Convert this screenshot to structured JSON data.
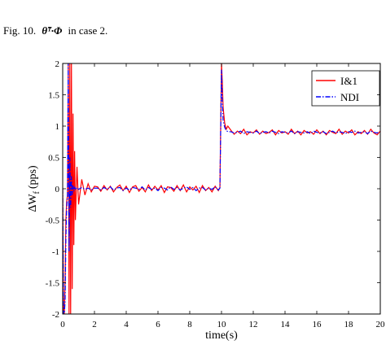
{
  "caption": {
    "prefix": "Fig. 10.",
    "math": "θ̃ᵀ·Φ",
    "suffix": "in case 2."
  },
  "chart_data": {
    "type": "line",
    "xlabel": "time(s)",
    "ylabel": {
      "main": "ΔW",
      "sub": "f",
      "unit": "(pps)"
    },
    "xlim": [
      0,
      20
    ],
    "ylim": [
      -2,
      2
    ],
    "xticks": [
      0,
      2,
      4,
      6,
      8,
      10,
      12,
      14,
      16,
      18,
      20
    ],
    "yticks": [
      2,
      1.5,
      1,
      0.5,
      0,
      -0.5,
      -1,
      -1.5,
      -2
    ],
    "legend": "upper-right",
    "x": [
      0,
      0.05,
      0.1,
      0.15,
      0.2,
      0.25,
      0.3,
      0.35,
      0.4,
      0.45,
      0.5,
      0.55,
      0.6,
      0.65,
      0.7,
      0.75,
      0.8,
      0.9,
      1.0,
      1.2,
      1.4,
      1.6,
      1.8,
      2.0,
      2.2,
      2.4,
      2.6,
      2.8,
      3.0,
      3.2,
      3.4,
      3.6,
      3.8,
      4.0,
      4.2,
      4.4,
      4.6,
      4.8,
      5.0,
      5.2,
      5.4,
      5.6,
      5.8,
      6.0,
      6.2,
      6.4,
      6.6,
      6.8,
      7.0,
      7.2,
      7.4,
      7.6,
      7.8,
      8.0,
      8.2,
      8.4,
      8.6,
      8.8,
      9.0,
      9.2,
      9.4,
      9.6,
      9.8,
      9.9,
      10.0,
      10.05,
      10.1,
      10.2,
      10.3,
      10.4,
      10.6,
      10.8,
      11.0,
      11.2,
      11.4,
      11.6,
      11.8,
      12.0,
      12.2,
      12.4,
      12.6,
      12.8,
      13.0,
      13.2,
      13.4,
      13.6,
      13.8,
      14.0,
      14.2,
      14.4,
      14.6,
      14.8,
      15.0,
      15.2,
      15.4,
      15.6,
      15.8,
      16.0,
      16.2,
      16.4,
      16.6,
      16.8,
      17.0,
      17.2,
      17.4,
      17.6,
      17.8,
      18.0,
      18.2,
      18.4,
      18.6,
      18.8,
      19.0,
      19.2,
      19.4,
      19.6,
      19.8,
      20.0
    ],
    "series": [
      {
        "name": "I&1",
        "color": "#ff0000",
        "dash": "solid",
        "values": [
          0,
          -2,
          -2,
          -1.5,
          -0.5,
          -0.2,
          -0.1,
          2,
          -2,
          2,
          -2,
          2,
          -1.6,
          1.2,
          -0.9,
          0.6,
          -0.5,
          0.35,
          -0.25,
          0.15,
          -0.1,
          0.08,
          -0.05,
          0.04,
          0.03,
          -0.04,
          0.05,
          -0.02,
          0.04,
          -0.05,
          0.02,
          0.06,
          -0.03,
          0.04,
          -0.06,
          0.03,
          0.05,
          -0.04,
          0.02,
          -0.05,
          0.06,
          -0.03,
          0.04,
          -0.02,
          0.05,
          -0.06,
          0.03,
          0.02,
          -0.04,
          0.05,
          -0.03,
          0.06,
          -0.05,
          0.03,
          -0.02,
          0.04,
          -0.06,
          0.05,
          -0.03,
          0.02,
          -0.05,
          0.04,
          -0.03,
          0.02,
          2,
          1.7,
          1.3,
          1.05,
          0.95,
          1.0,
          0.93,
          0.87,
          0.92,
          0.88,
          0.95,
          0.86,
          0.91,
          0.89,
          0.94,
          0.87,
          0.92,
          0.88,
          0.9,
          0.94,
          0.86,
          0.93,
          0.89,
          0.91,
          0.87,
          0.95,
          0.88,
          0.92,
          0.86,
          0.93,
          0.89,
          0.91,
          0.87,
          0.94,
          0.88,
          0.92,
          0.86,
          0.93,
          0.9,
          0.88,
          0.95,
          0.87,
          0.92,
          0.89,
          0.94,
          0.86,
          0.91,
          0.88,
          0.93,
          0.87,
          0.95,
          0.89,
          0.86,
          0.92
        ]
      },
      {
        "name": "NDI",
        "color": "#0000ff",
        "dash": "dashdot",
        "values": [
          0,
          -2,
          -2,
          -1.8,
          -0.8,
          -0.3,
          -0.1,
          2,
          -1,
          0.5,
          -0.3,
          0.2,
          -0.1,
          0.05,
          -0.04,
          0.03,
          -0.02,
          0.02,
          -0.01,
          0.02,
          -0.01,
          0.01,
          -0.02,
          0.01,
          0.01,
          -0.02,
          0.02,
          -0.01,
          0.03,
          -0.02,
          0.01,
          0.02,
          -0.03,
          0.01,
          -0.02,
          0.02,
          0.01,
          -0.01,
          0.03,
          -0.02,
          0.02,
          -0.01,
          0.01,
          -0.03,
          0.02,
          0.01,
          -0.02,
          0.03,
          -0.01,
          0.02,
          -0.02,
          0.01,
          0.03,
          -0.01,
          0.02,
          -0.03,
          0.01,
          0.02,
          -0.02,
          0.01,
          -0.01,
          0.03,
          -0.02,
          0.01,
          1.9,
          1.4,
          1.1,
          0.98,
          0.93,
          0.91,
          0.91,
          0.89,
          0.9,
          0.92,
          0.88,
          0.91,
          0.9,
          0.89,
          0.92,
          0.88,
          0.9,
          0.91,
          0.89,
          0.92,
          0.9,
          0.88,
          0.91,
          0.9,
          0.89,
          0.92,
          0.88,
          0.91,
          0.9,
          0.89,
          0.91,
          0.88,
          0.92,
          0.9,
          0.89,
          0.91,
          0.88,
          0.9,
          0.92,
          0.89,
          0.91,
          0.9,
          0.88,
          0.91,
          0.9,
          0.92,
          0.89,
          0.9,
          0.91,
          0.88,
          0.92,
          0.9,
          0.89,
          0.91
        ]
      }
    ]
  }
}
